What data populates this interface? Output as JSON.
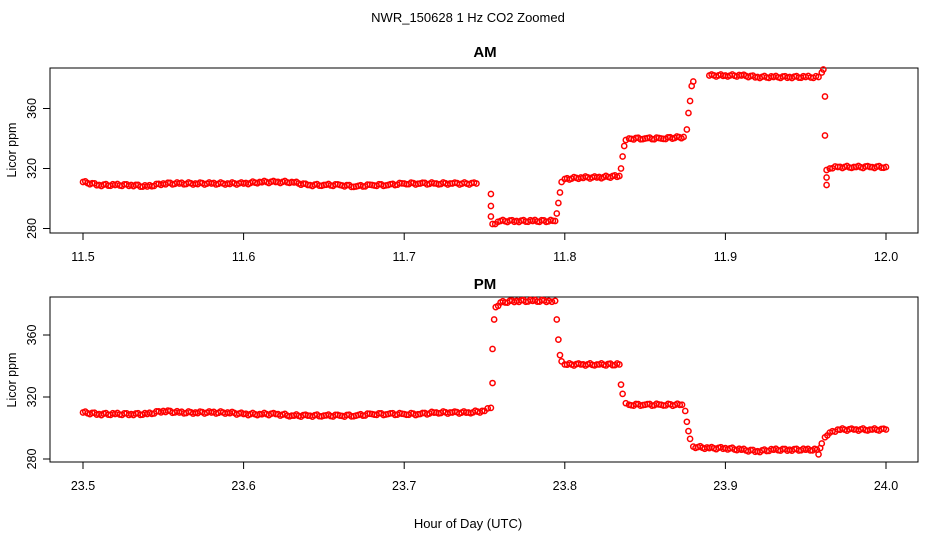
{
  "figure": {
    "title": "NWR_150628  1 Hz CO2 Zoomed",
    "xlabel": "Hour of Day (UTC)"
  },
  "colors": {
    "points": "#ff0000",
    "axes": "#000000",
    "background": "#ffffff"
  },
  "chart_data": [
    {
      "type": "scatter",
      "title": "AM",
      "ylabel": "Licor ppm",
      "xlim": [
        11.5,
        12.0
      ],
      "ylim": [
        280,
        385
      ],
      "x_ticks": [
        "11.5",
        "11.6",
        "11.7",
        "11.8",
        "11.9",
        "12.0"
      ],
      "y_ticks": [
        "280",
        "320",
        "360"
      ],
      "marker": "open-circle",
      "series": [
        {
          "points": [
            [
              11.5,
              311
            ],
            [
              11.51,
              309
            ],
            [
              11.52,
              309
            ],
            [
              11.53,
              309
            ],
            [
              11.54,
              308
            ],
            [
              11.55,
              310
            ],
            [
              11.56,
              310
            ],
            [
              11.57,
              310
            ],
            [
              11.58,
              310
            ],
            [
              11.59,
              310
            ],
            [
              11.6,
              310
            ],
            [
              11.61,
              311
            ],
            [
              11.62,
              311
            ],
            [
              11.63,
              311
            ],
            [
              11.64,
              309
            ],
            [
              11.65,
              309
            ],
            [
              11.66,
              309
            ],
            [
              11.67,
              308
            ],
            [
              11.68,
              309
            ],
            [
              11.69,
              309
            ],
            [
              11.7,
              310
            ],
            [
              11.71,
              310
            ],
            [
              11.72,
              310
            ],
            [
              11.73,
              310
            ],
            [
              11.745,
              310
            ],
            [
              11.754,
              303
            ],
            [
              11.754,
              295
            ],
            [
              11.754,
              288
            ],
            [
              11.755,
              283
            ],
            [
              11.76,
              285
            ],
            [
              11.77,
              285
            ],
            [
              11.78,
              285
            ],
            [
              11.794,
              285
            ],
            [
              11.795,
              290
            ],
            [
              11.796,
              297
            ],
            [
              11.797,
              304
            ],
            [
              11.798,
              311
            ],
            [
              11.8,
              313
            ],
            [
              11.81,
              314
            ],
            [
              11.82,
              314
            ],
            [
              11.834,
              315
            ],
            [
              11.835,
              320
            ],
            [
              11.836,
              328
            ],
            [
              11.837,
              335
            ],
            [
              11.838,
              339
            ],
            [
              11.84,
              340
            ],
            [
              11.85,
              340
            ],
            [
              11.86,
              340
            ],
            [
              11.874,
              341
            ],
            [
              11.876,
              346
            ],
            [
              11.877,
              357
            ],
            [
              11.878,
              365
            ],
            [
              11.879,
              375
            ],
            [
              11.88,
              378
            ],
            [
              11.89,
              382
            ],
            [
              11.9,
              382
            ],
            [
              11.91,
              382
            ],
            [
              11.92,
              381
            ],
            [
              11.93,
              381
            ],
            [
              11.94,
              381
            ],
            [
              11.95,
              381
            ],
            [
              11.958,
              381
            ],
            [
              11.96,
              384
            ],
            [
              11.961,
              386
            ],
            [
              11.962,
              368
            ],
            [
              11.962,
              342
            ],
            [
              11.963,
              319
            ],
            [
              11.963,
              314
            ],
            [
              11.963,
              309
            ],
            [
              11.965,
              320
            ],
            [
              11.97,
              321
            ],
            [
              11.98,
              321
            ],
            [
              11.99,
              321
            ],
            [
              12.0,
              321
            ]
          ]
        }
      ]
    },
    {
      "type": "scatter",
      "title": "PM",
      "ylabel": "Licor ppm",
      "xlim": [
        23.5,
        24.0
      ],
      "ylim": [
        280,
        385
      ],
      "x_ticks": [
        "23.5",
        "23.6",
        "23.7",
        "23.8",
        "23.9",
        "24.0"
      ],
      "y_ticks": [
        "280",
        "320",
        "360"
      ],
      "marker": "open-circle",
      "series": [
        {
          "points": [
            [
              23.5,
              310
            ],
            [
              23.51,
              309
            ],
            [
              23.52,
              309
            ],
            [
              23.53,
              309
            ],
            [
              23.54,
              309
            ],
            [
              23.55,
              311
            ],
            [
              23.56,
              310
            ],
            [
              23.57,
              310
            ],
            [
              23.58,
              310
            ],
            [
              23.59,
              310
            ],
            [
              23.6,
              309
            ],
            [
              23.61,
              309
            ],
            [
              23.62,
              309
            ],
            [
              23.63,
              308
            ],
            [
              23.64,
              308
            ],
            [
              23.65,
              308
            ],
            [
              23.66,
              308
            ],
            [
              23.67,
              308
            ],
            [
              23.68,
              309
            ],
            [
              23.69,
              309
            ],
            [
              23.7,
              309
            ],
            [
              23.71,
              309
            ],
            [
              23.72,
              310
            ],
            [
              23.73,
              310
            ],
            [
              23.74,
              310
            ],
            [
              23.75,
              311
            ],
            [
              23.754,
              313
            ],
            [
              23.755,
              329
            ],
            [
              23.755,
              351
            ],
            [
              23.756,
              370
            ],
            [
              23.757,
              378
            ],
            [
              23.76,
              381
            ],
            [
              23.77,
              382
            ],
            [
              23.78,
              382
            ],
            [
              23.79,
              382
            ],
            [
              23.794,
              382
            ],
            [
              23.795,
              370
            ],
            [
              23.796,
              357
            ],
            [
              23.797,
              347
            ],
            [
              23.798,
              343
            ],
            [
              23.8,
              341
            ],
            [
              23.81,
              341
            ],
            [
              23.82,
              341
            ],
            [
              23.834,
              341
            ],
            [
              23.835,
              328
            ],
            [
              23.836,
              322
            ],
            [
              23.838,
              316
            ],
            [
              23.84,
              315
            ],
            [
              23.85,
              315
            ],
            [
              23.86,
              315
            ],
            [
              23.873,
              315
            ],
            [
              23.875,
              311
            ],
            [
              23.876,
              304
            ],
            [
              23.877,
              298
            ],
            [
              23.878,
              293
            ],
            [
              23.88,
              288
            ],
            [
              23.89,
              287
            ],
            [
              23.9,
              287
            ],
            [
              23.91,
              286
            ],
            [
              23.92,
              285
            ],
            [
              23.93,
              286
            ],
            [
              23.94,
              286
            ],
            [
              23.95,
              286
            ],
            [
              23.957,
              286
            ],
            [
              23.958,
              283
            ],
            [
              23.959,
              287
            ],
            [
              23.96,
              290
            ],
            [
              23.962,
              294
            ],
            [
              23.965,
              297
            ],
            [
              23.97,
              299
            ],
            [
              23.98,
              299
            ],
            [
              23.99,
              299
            ],
            [
              24.0,
              299
            ]
          ]
        }
      ]
    }
  ]
}
